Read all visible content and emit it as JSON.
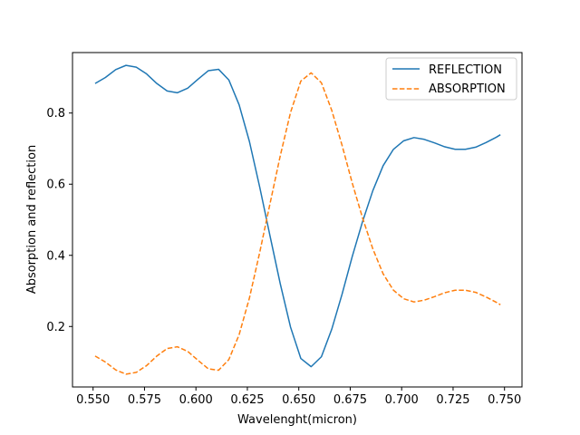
{
  "chart_data": {
    "type": "line",
    "title": "",
    "xlabel": "Wavelenght(micron)",
    "ylabel": "Absorption and reflection",
    "xlim": [
      0.54,
      0.7585
    ],
    "ylim": [
      0.03,
      0.97
    ],
    "xticks": [
      0.55,
      0.575,
      0.6,
      0.625,
      0.65,
      0.675,
      0.7,
      0.725,
      0.75
    ],
    "xtick_labels": [
      "0.550",
      "0.575",
      "0.600",
      "0.625",
      "0.650",
      "0.675",
      "0.700",
      "0.725",
      "0.750"
    ],
    "yticks": [
      0.2,
      0.4,
      0.6,
      0.8
    ],
    "ytick_labels": [
      "0.2",
      "0.4",
      "0.6",
      "0.8"
    ],
    "grid": false,
    "legend_position": "top-right",
    "x": [
      0.551,
      0.556,
      0.561,
      0.566,
      0.571,
      0.576,
      0.581,
      0.586,
      0.591,
      0.596,
      0.601,
      0.606,
      0.611,
      0.616,
      0.621,
      0.626,
      0.631,
      0.636,
      0.641,
      0.646,
      0.651,
      0.656,
      0.661,
      0.666,
      0.671,
      0.676,
      0.681,
      0.686,
      0.691,
      0.696,
      0.701,
      0.706,
      0.711,
      0.716,
      0.721,
      0.726,
      0.731,
      0.736,
      0.741,
      0.746,
      0.748
    ],
    "series": [
      {
        "name": "REFLECTION",
        "color": "#1f77b4",
        "style": "solid",
        "values": [
          0.883,
          0.9,
          0.922,
          0.934,
          0.929,
          0.91,
          0.883,
          0.862,
          0.857,
          0.87,
          0.895,
          0.919,
          0.923,
          0.893,
          0.823,
          0.72,
          0.592,
          0.455,
          0.32,
          0.198,
          0.11,
          0.087,
          0.115,
          0.192,
          0.29,
          0.397,
          0.495,
          0.582,
          0.652,
          0.698,
          0.722,
          0.731,
          0.726,
          0.716,
          0.705,
          0.698,
          0.698,
          0.704,
          0.717,
          0.732,
          0.739
        ]
      },
      {
        "name": "ABSORPTION",
        "color": "#ff7f0e",
        "style": "dashed",
        "values": [
          0.117,
          0.1,
          0.078,
          0.066,
          0.071,
          0.09,
          0.117,
          0.138,
          0.143,
          0.13,
          0.105,
          0.081,
          0.077,
          0.107,
          0.177,
          0.28,
          0.408,
          0.545,
          0.68,
          0.802,
          0.89,
          0.913,
          0.885,
          0.808,
          0.71,
          0.603,
          0.505,
          0.418,
          0.348,
          0.302,
          0.278,
          0.269,
          0.274,
          0.284,
          0.295,
          0.302,
          0.302,
          0.296,
          0.283,
          0.268,
          0.261
        ]
      }
    ]
  }
}
